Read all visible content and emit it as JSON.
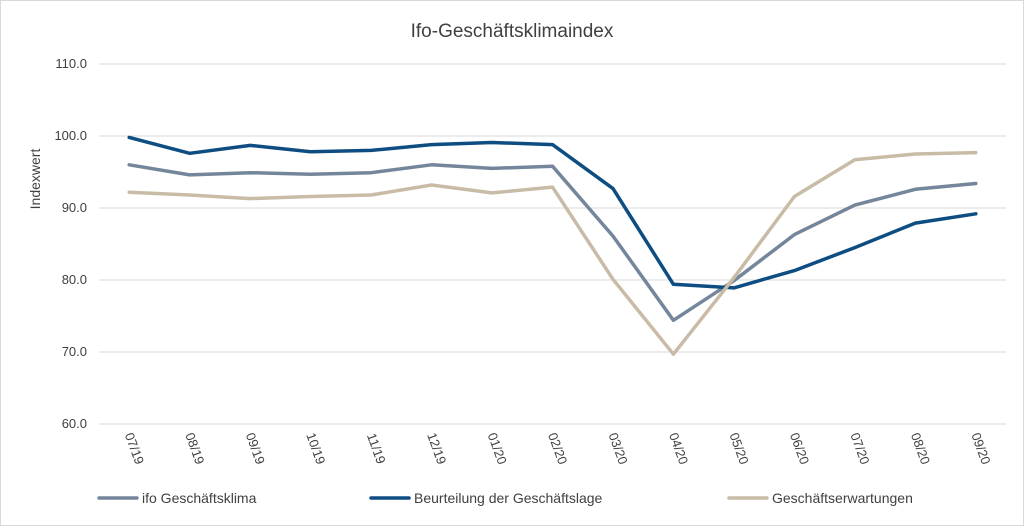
{
  "chart_data": {
    "type": "line",
    "title": "Ifo-Geschäftsklimaindex",
    "xlabel": "",
    "ylabel": "Indexwert",
    "ylim": [
      60,
      110
    ],
    "yticks": [
      "60.0",
      "70.0",
      "80.0",
      "90.0",
      "100.0",
      "110.0"
    ],
    "categories": [
      "07/19",
      "08/19",
      "09/19",
      "10/19",
      "11/19",
      "12/19",
      "01/20",
      "02/20",
      "03/20",
      "04/20",
      "05/20",
      "06/20",
      "07/20",
      "08/20",
      "09/20"
    ],
    "grid": true,
    "legend_position": "bottom",
    "series": [
      {
        "name": "ifo Geschäftsklima",
        "color": "#74869b",
        "values": [
          96.0,
          94.6,
          94.9,
          94.7,
          94.9,
          96.0,
          95.5,
          95.8,
          86.1,
          74.4,
          79.9,
          86.3,
          90.4,
          92.6,
          93.4
        ]
      },
      {
        "name": "Beurteilung der Geschäftslage",
        "color": "#0e4d82",
        "values": [
          99.8,
          97.6,
          98.7,
          97.8,
          98.0,
          98.8,
          99.1,
          98.8,
          92.7,
          79.4,
          78.9,
          81.3,
          84.5,
          87.9,
          89.2
        ]
      },
      {
        "name": "Geschäftserwartungen",
        "color": "#c9bca6",
        "values": [
          92.2,
          91.8,
          91.3,
          91.6,
          91.8,
          93.2,
          92.1,
          92.9,
          80.1,
          69.7,
          80.3,
          91.6,
          96.7,
          97.5,
          97.7
        ]
      }
    ]
  }
}
